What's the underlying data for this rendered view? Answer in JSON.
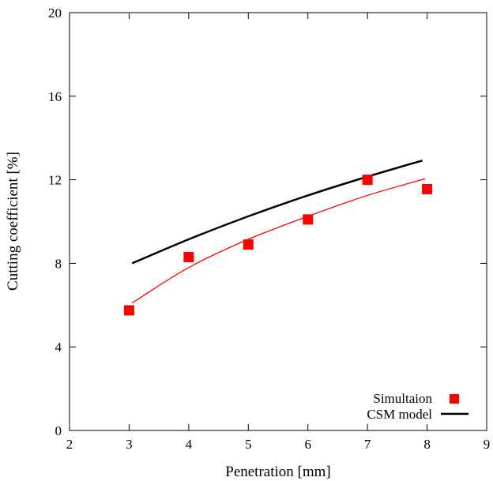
{
  "chart_data": {
    "type": "scatter",
    "title": "",
    "xlabel": "Penetration [mm]",
    "ylabel": "Cutting coefficient [%]",
    "xlim": [
      2,
      9
    ],
    "ylim": [
      0,
      20
    ],
    "x_ticks": [
      "2",
      "3",
      "4",
      "5",
      "6",
      "7",
      "8",
      "9"
    ],
    "y_ticks": [
      "0",
      "4",
      "8",
      "12",
      "16",
      "20"
    ],
    "grid": false,
    "legend_position": "bottom-right",
    "series": [
      {
        "name": "Simultaion",
        "type": "scatter",
        "marker": "square",
        "color": "#ff0000",
        "x": [
          3,
          4,
          5,
          6,
          7,
          8
        ],
        "y": [
          5.75,
          8.3,
          8.9,
          10.1,
          12.0,
          11.55
        ]
      },
      {
        "name": "CSM model",
        "type": "line",
        "color": "#000000",
        "x": [
          3.05,
          4,
          5,
          6,
          7,
          7.92
        ],
        "y": [
          8.0,
          9.15,
          10.25,
          11.25,
          12.15,
          12.92
        ]
      },
      {
        "type": "line",
        "color": "#ff0000",
        "x": [
          3.05,
          4,
          5,
          6,
          7,
          7.97
        ],
        "y": [
          6.1,
          7.8,
          9.15,
          10.25,
          11.25,
          12.05
        ]
      }
    ]
  }
}
